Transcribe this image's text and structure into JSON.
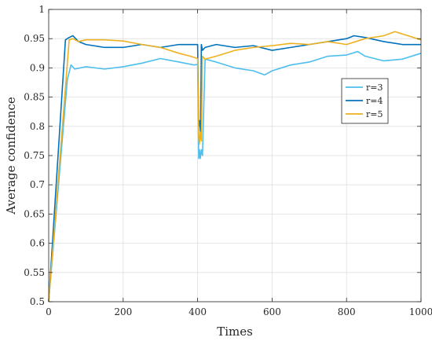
{
  "chart_data": {
    "type": "line",
    "title": "",
    "xlabel": "Times",
    "ylabel": "Average confidence",
    "xlim": [
      0,
      1000
    ],
    "ylim": [
      0.5,
      1.0
    ],
    "xticks": [
      0,
      200,
      400,
      600,
      800,
      1000
    ],
    "yticks": [
      0.5,
      0.55,
      0.6,
      0.65,
      0.7,
      0.75,
      0.8,
      0.85,
      0.9,
      0.95,
      1.0
    ],
    "xtick_labels": [
      "0",
      "200",
      "400",
      "600",
      "800",
      "1000"
    ],
    "ytick_labels": [
      "0.5",
      "0.55",
      "0.6",
      "0.65",
      "0.7",
      "0.75",
      "0.8",
      "0.85",
      "0.9",
      "0.95",
      "1"
    ],
    "grid": true,
    "legend_position": "right",
    "series": [
      {
        "name": "r=3",
        "color": "#4DBEEE",
        "x": [
          0,
          50,
          60,
          70,
          100,
          150,
          200,
          250,
          300,
          350,
          390,
          400,
          403,
          405,
          407,
          410,
          413,
          420,
          450,
          500,
          550,
          580,
          600,
          650,
          700,
          750,
          800,
          830,
          850,
          900,
          950,
          1000
        ],
        "y": [
          0.5,
          0.88,
          0.905,
          0.898,
          0.902,
          0.898,
          0.902,
          0.908,
          0.916,
          0.91,
          0.905,
          0.906,
          0.745,
          0.76,
          0.745,
          0.76,
          0.75,
          0.915,
          0.91,
          0.9,
          0.895,
          0.888,
          0.895,
          0.905,
          0.91,
          0.92,
          0.922,
          0.928,
          0.92,
          0.912,
          0.915,
          0.925
        ]
      },
      {
        "name": "r=4",
        "color": "#0072BD",
        "x": [
          0,
          45,
          55,
          65,
          80,
          100,
          150,
          200,
          250,
          300,
          350,
          390,
          400,
          403,
          405,
          408,
          410,
          413,
          420,
          450,
          500,
          550,
          600,
          650,
          700,
          750,
          800,
          820,
          850,
          900,
          950,
          1000
        ],
        "y": [
          0.5,
          0.948,
          0.952,
          0.955,
          0.945,
          0.94,
          0.935,
          0.935,
          0.94,
          0.935,
          0.94,
          0.94,
          0.94,
          0.8,
          0.81,
          0.79,
          0.94,
          0.93,
          0.935,
          0.94,
          0.935,
          0.938,
          0.93,
          0.935,
          0.94,
          0.945,
          0.95,
          0.955,
          0.952,
          0.945,
          0.94,
          0.94
        ]
      },
      {
        "name": "r=5",
        "color": "#EDB120",
        "x": [
          0,
          55,
          65,
          80,
          100,
          150,
          200,
          250,
          300,
          350,
          380,
          400,
          403,
          405,
          407,
          410,
          413,
          420,
          450,
          500,
          550,
          600,
          650,
          700,
          750,
          800,
          850,
          900,
          930,
          950,
          1000
        ],
        "y": [
          0.5,
          0.948,
          0.95,
          0.945,
          0.948,
          0.948,
          0.946,
          0.94,
          0.935,
          0.925,
          0.92,
          0.916,
          0.78,
          0.77,
          0.79,
          0.775,
          0.92,
          0.915,
          0.92,
          0.93,
          0.935,
          0.938,
          0.942,
          0.94,
          0.945,
          0.94,
          0.95,
          0.955,
          0.962,
          0.958,
          0.948
        ]
      }
    ]
  }
}
